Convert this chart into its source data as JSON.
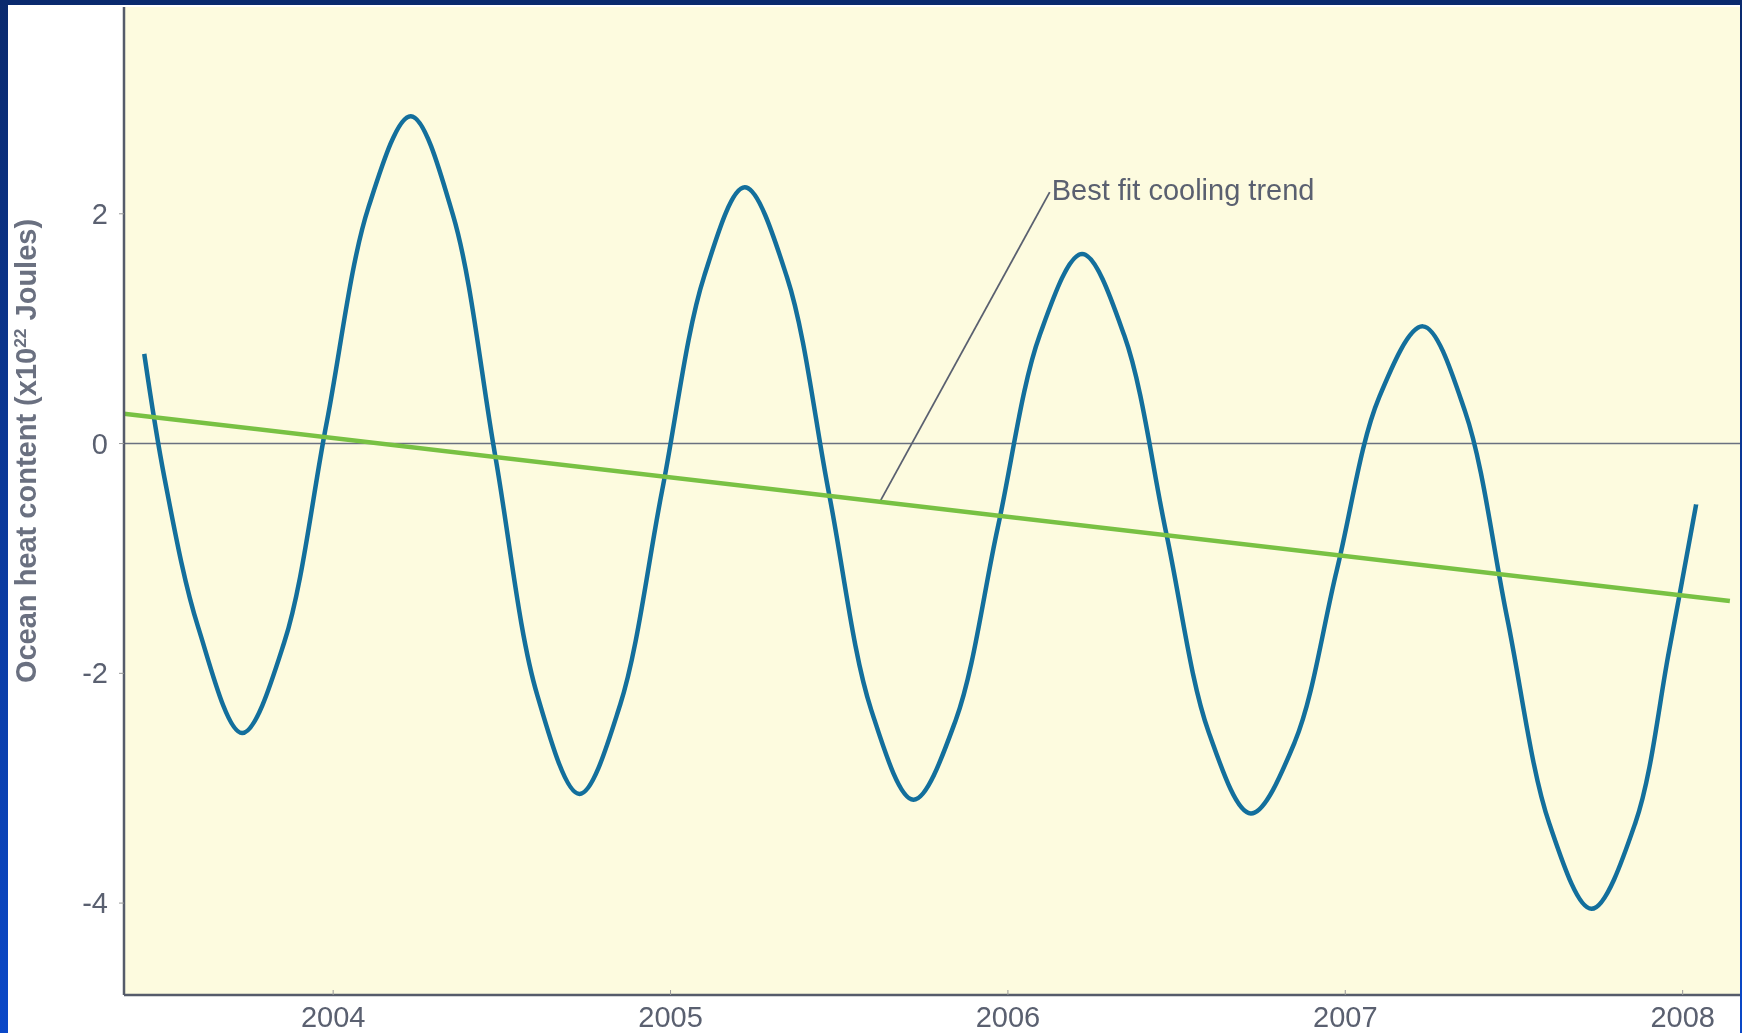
{
  "chart_data": {
    "type": "line",
    "ylabel": "Ocean heat content (x10$^{22}$ Joules)",
    "xlim": [
      2003.38,
      2008.17
    ],
    "ylim": [
      -4.8,
      3.8
    ],
    "xticks": [
      2004,
      2005,
      2006,
      2007,
      2008
    ],
    "yticks": [
      -4,
      -2,
      0,
      2
    ],
    "grid": false,
    "marker": "none",
    "line_style": "solid",
    "series": [
      {
        "color": "#136f9c",
        "x": [
          2003.44,
          2003.5,
          2003.6,
          2003.73,
          2003.855,
          2003.98,
          2004.105,
          2004.23,
          2004.355,
          2004.48,
          2004.605,
          2004.73,
          2004.85,
          2004.975,
          2005.1,
          2005.22,
          2005.345,
          2005.47,
          2005.595,
          2005.72,
          2005.845,
          2005.97,
          2006.095,
          2006.22,
          2006.345,
          2006.47,
          2006.595,
          2006.72,
          2006.85,
          2006.975,
          2007.1,
          2007.23,
          2007.355,
          2007.48,
          2007.605,
          2007.73,
          2007.86,
          2007.96,
          2008.04
        ],
        "values": [
          0.78,
          -0.3,
          -1.6,
          -2.52,
          -1.73,
          0.17,
          2.06,
          2.85,
          1.99,
          -0.1,
          -2.19,
          -3.05,
          -2.28,
          -0.41,
          1.46,
          2.23,
          1.45,
          -0.44,
          -2.32,
          -3.1,
          -2.41,
          -0.73,
          0.95,
          1.65,
          0.94,
          -0.79,
          -2.51,
          -3.22,
          -2.6,
          -1.1,
          0.4,
          1.02,
          0.28,
          -1.52,
          -3.31,
          -4.05,
          -3.3,
          -1.8,
          -0.53
        ]
      },
      {
        "type": "line",
        "color": "#78c143",
        "x": [
          2003.38,
          2008.14
        ],
        "values": [
          0.26,
          -1.37
        ]
      }
    ],
    "ref_lines": [
      {
        "axis": "y",
        "value": 0,
        "color": "#6a7080"
      }
    ],
    "annotations": [
      {
        "text": "Best fit cooling trend",
        "x": 2005.62,
        "y": -0.51
      }
    ]
  }
}
